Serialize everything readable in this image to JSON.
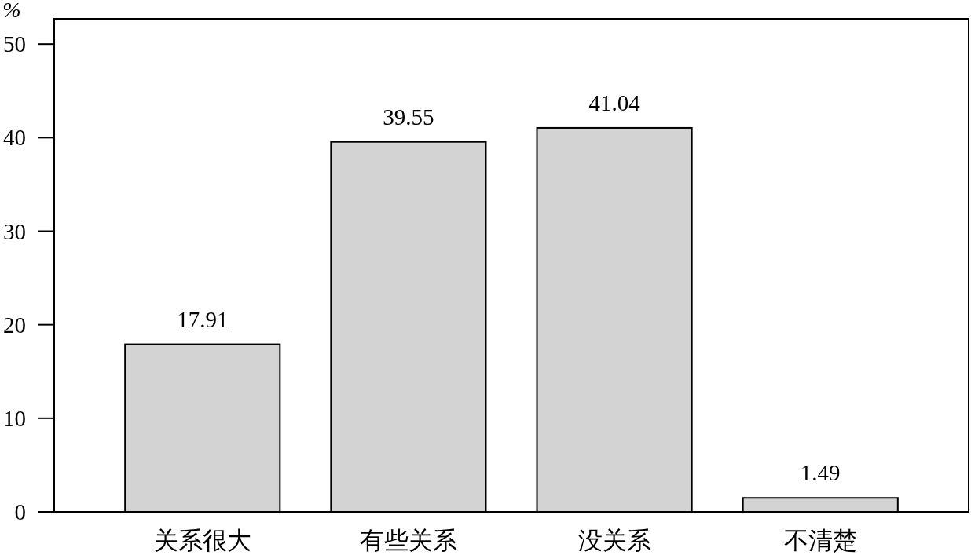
{
  "chart_data": {
    "type": "bar",
    "ylabel": "%",
    "categories": [
      "关系很大",
      "有些关系",
      "没关系",
      "不清楚"
    ],
    "values": [
      17.91,
      39.55,
      41.04,
      1.49
    ],
    "color": "#d3d3d3",
    "ylim": [
      0,
      52.7
    ],
    "yticks": [
      0,
      10,
      20,
      30,
      40,
      50
    ],
    "data_labels": true
  }
}
